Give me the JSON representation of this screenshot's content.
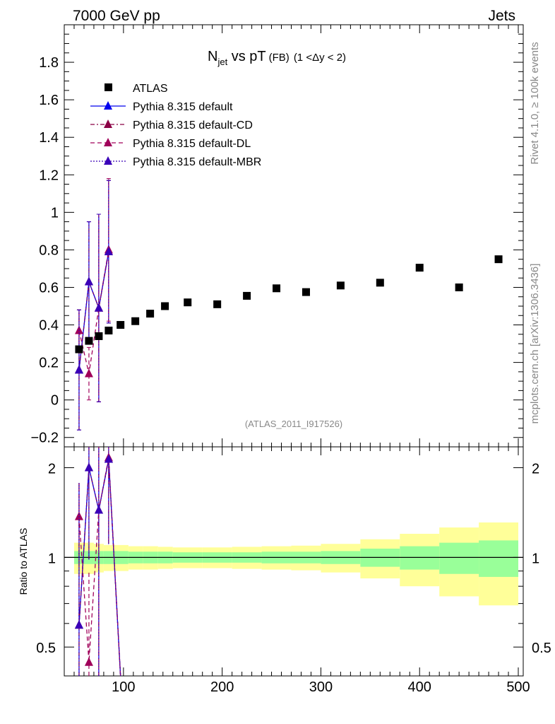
{
  "header": {
    "left": "7000 GeV pp",
    "right": "Jets"
  },
  "side_labels": {
    "rivet": "Rivet 4.1.0, ≥ 100k events",
    "mcplots": "mcplots.cern.ch [arXiv:1306.3436]"
  },
  "title": {
    "main": "N",
    "sub": "jet",
    "rest": " vs pT",
    "small": "(FB)",
    "range": "(1 <Δy < 2)"
  },
  "analysis_id": "(ATLAS_2011_I917526)",
  "chart_data": {
    "type": "scatter",
    "xlim": [
      40,
      505
    ],
    "ylim": [
      -0.25,
      2.0
    ],
    "ratio_ylim_log": [
      0.4,
      2.35
    ],
    "xticks": [
      100,
      200,
      300,
      400,
      500
    ],
    "yticks": [
      -0.2,
      0,
      0.2,
      0.4,
      0.6,
      0.8,
      1,
      1.2,
      1.4,
      1.6,
      1.8
    ],
    "yticklabels": [
      "−0.2",
      "0",
      "0.2",
      "0.4",
      "0.6",
      "0.8",
      "1",
      "1.2",
      "1.4",
      "1.6",
      "1.8"
    ],
    "ratio_yticks": [
      0.5,
      1,
      2
    ],
    "ratio_yticklabels": [
      "0.5",
      "1",
      "2"
    ],
    "ratio_ylabel": "Ratio to ATLAS",
    "legend": [
      {
        "name": "ATLAS",
        "color": "#000000",
        "dash": "",
        "marker": "square"
      },
      {
        "name": "Pythia 8.315 default",
        "color": "#0000ee",
        "dash": "",
        "marker": "triangle"
      },
      {
        "name": "Pythia 8.315 default-CD",
        "color": "#8b0045",
        "dash": "6,3,2,3",
        "marker": "triangle"
      },
      {
        "name": "Pythia 8.315 default-DL",
        "color": "#a0005a",
        "dash": "6,4",
        "marker": "triangle"
      },
      {
        "name": "Pythia 8.315 default-MBR",
        "color": "#3a00b8",
        "dash": "2,2",
        "marker": "triangle"
      }
    ],
    "atlas": {
      "x": [
        55,
        65,
        75,
        85,
        97,
        112,
        127,
        142,
        165,
        195,
        225,
        255,
        285,
        320,
        360,
        400,
        440,
        480
      ],
      "y": [
        0.27,
        0.315,
        0.34,
        0.37,
        0.4,
        0.42,
        0.46,
        0.5,
        0.52,
        0.51,
        0.555,
        0.595,
        0.575,
        0.61,
        0.625,
        0.705,
        0.6,
        0.75
      ],
      "bin_edges": [
        50,
        60,
        70,
        80,
        90,
        105,
        120,
        135,
        150,
        180,
        210,
        240,
        270,
        300,
        340,
        380,
        420,
        460,
        500
      ],
      "band_green_rel": [
        0.05,
        0.05,
        0.05,
        0.05,
        0.05,
        0.045,
        0.045,
        0.045,
        0.04,
        0.04,
        0.04,
        0.045,
        0.045,
        0.05,
        0.07,
        0.09,
        0.12,
        0.14
      ],
      "band_yellow_rel": [
        0.12,
        0.12,
        0.11,
        0.1,
        0.1,
        0.09,
        0.09,
        0.085,
        0.08,
        0.08,
        0.085,
        0.09,
        0.095,
        0.11,
        0.15,
        0.2,
        0.26,
        0.31
      ]
    },
    "mc_series": [
      {
        "name": "Pythia 8.315 default",
        "x": [
          55,
          65,
          75,
          85
        ],
        "y": [
          0.16,
          0.63,
          0.49,
          0.79
        ],
        "err": [
          0.32,
          0.32,
          0.5,
          0.38
        ]
      },
      {
        "name": "Pythia 8.315 default-CD",
        "x": [
          55,
          65,
          75,
          85
        ],
        "y": [
          0.16,
          0.63,
          0.49,
          0.79
        ],
        "err": [
          0.32,
          0.32,
          0.5,
          0.38
        ]
      },
      {
        "name": "Pythia 8.315 default-DL",
        "x": [
          55,
          65,
          75,
          85
        ],
        "y": [
          0.37,
          0.14,
          0.49,
          0.8
        ],
        "err": [
          0.11,
          0.14,
          0.5,
          0.38
        ]
      },
      {
        "name": "Pythia 8.315 default-MBR",
        "x": [
          55,
          65,
          75,
          85
        ],
        "y": [
          0.16,
          0.63,
          0.49,
          0.79
        ],
        "err": [
          0.32,
          0.32,
          0.5,
          0.38
        ]
      }
    ]
  }
}
